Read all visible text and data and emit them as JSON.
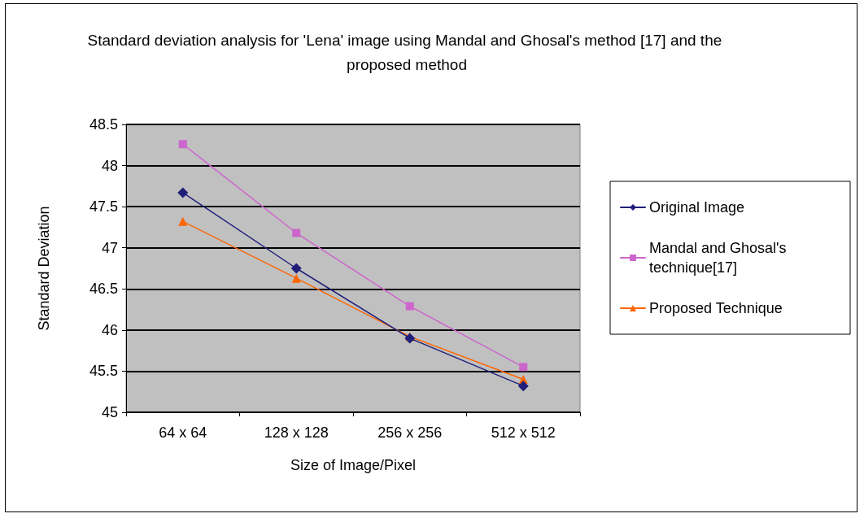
{
  "chart_data": {
    "type": "line",
    "title": "Standard deviation analysis for 'Lena' image using Mandal and Ghosal's method [17] and the proposed method",
    "xlabel": "Size of Image/Pixel",
    "ylabel": "Standard Deviation",
    "categories": [
      "64 x 64",
      "128 x 128",
      "256 x 256",
      "512 x 512"
    ],
    "series": [
      {
        "name": "Original Image",
        "color": "#1f1f7a",
        "marker": "diamond",
        "values": [
          47.67,
          46.75,
          45.9,
          45.32
        ]
      },
      {
        "name": "Mandal and Ghosal's technique[17]",
        "color": "#cc66cc",
        "marker": "square",
        "values": [
          48.26,
          47.18,
          46.29,
          45.55
        ]
      },
      {
        "name": "Proposed Technique",
        "color": "#ff6600",
        "marker": "triangle",
        "values": [
          47.32,
          46.63,
          45.92,
          45.4
        ]
      }
    ],
    "ylim": [
      45,
      48.5
    ],
    "yticks": [
      45,
      45.5,
      46,
      46.5,
      47,
      47.5,
      48,
      48.5
    ],
    "grid": "y",
    "legend": "right"
  }
}
